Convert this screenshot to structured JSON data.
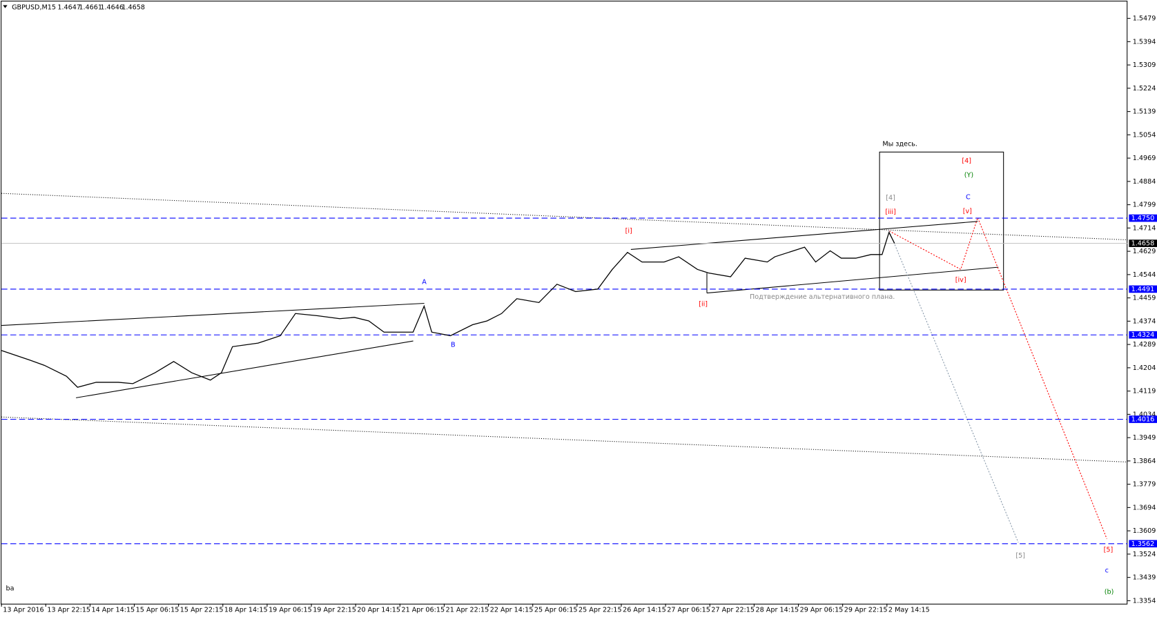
{
  "chart_data": {
    "type": "line",
    "title": "GBPUSD,M15",
    "ohlc": [
      1.4647,
      1.4661,
      1.4646,
      1.4658
    ],
    "corner_text": "ba",
    "x": [
      0,
      41,
      62,
      94,
      110,
      137,
      169,
      190,
      222,
      249,
      275,
      302,
      318,
      334,
      371,
      403,
      425,
      457,
      489,
      510,
      531,
      553,
      595,
      611,
      622,
      649,
      681,
      702,
      723,
      745,
      777,
      803,
      830,
      862,
      883,
      905,
      926,
      958,
      979,
      1006,
      1022,
      1054,
      1075,
      1107,
      1118,
      1145,
      1161,
      1177,
      1198,
      1214,
      1235,
      1257,
      1273,
      1283,
      1291
    ],
    "series": [
      {
        "color": "#000000",
        "values": [
          1.4267,
          1.4232,
          1.4213,
          1.4173,
          1.4133,
          1.4151,
          1.4151,
          1.4146,
          1.4186,
          1.4227,
          1.4186,
          1.4159,
          1.4186,
          1.4281,
          1.4294,
          1.4321,
          1.4402,
          1.4394,
          1.4383,
          1.4388,
          1.4375,
          1.4334,
          1.4334,
          1.4429,
          1.4334,
          1.4321,
          1.4361,
          1.4375,
          1.4402,
          1.4456,
          1.4442,
          1.4509,
          1.4482,
          1.4491,
          1.4563,
          1.4625,
          1.459,
          1.459,
          1.4609,
          1.4563,
          1.455,
          1.4536,
          1.4604,
          1.459,
          1.4609,
          1.4631,
          1.4644,
          1.459,
          1.4631,
          1.4604,
          1.4604,
          1.4617,
          1.4617,
          1.4698,
          1.4658
        ]
      }
    ],
    "xlim": [
      0,
      1628
    ],
    "ylim": [
      1.3343,
      1.5546
    ],
    "xticks": [
      {
        "value": 0,
        "label": "13 Apr 2016"
      },
      {
        "value": 64,
        "label": "13 Apr 22:15"
      },
      {
        "value": 128,
        "label": "14 Apr 14:15"
      },
      {
        "value": 192,
        "label": "15 Apr 06:15"
      },
      {
        "value": 256,
        "label": "15 Apr 22:15"
      },
      {
        "value": 320,
        "label": "18 Apr 14:15"
      },
      {
        "value": 384,
        "label": "19 Apr 06:15"
      },
      {
        "value": 448,
        "label": "19 Apr 22:15"
      },
      {
        "value": 512,
        "label": "20 Apr 14:15"
      },
      {
        "value": 576,
        "label": "21 Apr 06:15"
      },
      {
        "value": 640,
        "label": "21 Apr 22:15"
      },
      {
        "value": 704,
        "label": "22 Apr 14:15"
      },
      {
        "value": 768,
        "label": "25 Apr 06:15"
      },
      {
        "value": 832,
        "label": "25 Apr 22:15"
      },
      {
        "value": 896,
        "label": "26 Apr 14:15"
      },
      {
        "value": 960,
        "label": "27 Apr 06:15"
      },
      {
        "value": 1024,
        "label": "27 Apr 22:15"
      },
      {
        "value": 1088,
        "label": "28 Apr 14:15"
      },
      {
        "value": 1152,
        "label": "29 Apr 06:15"
      },
      {
        "value": 1216,
        "label": "29 Apr 22:15"
      },
      {
        "value": 1280,
        "label": "2 May 14:15"
      }
    ],
    "yticks": [
      1.5479,
      1.5394,
      1.5309,
      1.5224,
      1.5139,
      1.5054,
      1.4969,
      1.4884,
      1.4799,
      1.4714,
      1.4629,
      1.4544,
      1.4459,
      1.4374,
      1.4289,
      1.4204,
      1.4119,
      1.4034,
      1.3949,
      1.3864,
      1.3779,
      1.3694,
      1.3609,
      1.3524,
      1.3439,
      1.3354
    ],
    "levels": [
      {
        "value": 1.475,
        "label": "1.4750"
      },
      1.4491,
      1.4324,
      1.4016,
      1.3562
    ],
    "level_color": "#0000ff",
    "current_price": 1.4658,
    "annotations": [
      "A",
      "B",
      "[i]",
      "[ii]",
      "[iii]",
      "[iv]",
      "[v]",
      "[4]",
      "[4]",
      "(Y)",
      "C",
      "[5]",
      "[5]",
      "c",
      "(b)",
      "Мы здесь.",
      "Подтверждение альтернативного плана."
    ]
  }
}
